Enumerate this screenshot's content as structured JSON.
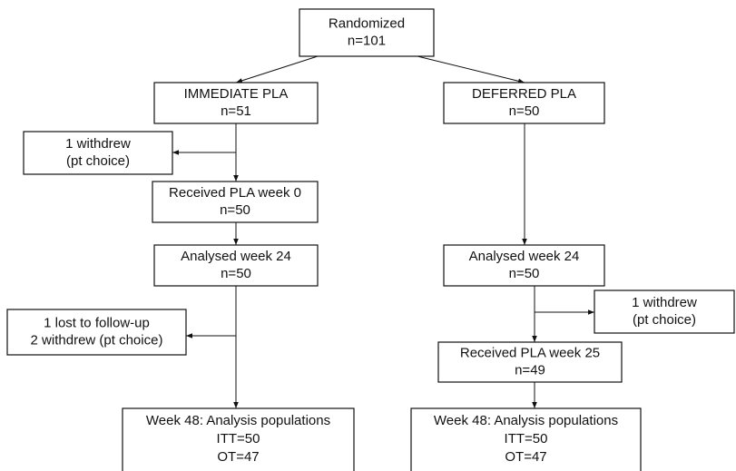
{
  "nodes": [
    {
      "lines": [
        "Randomized",
        "n=101"
      ]
    },
    {
      "lines": [
        "IMMEDIATE PLA",
        "n=51"
      ]
    },
    {
      "lines": [
        "DEFERRED PLA",
        "n=50"
      ]
    },
    {
      "lines": [
        "1 withdrew",
        "(pt choice)"
      ]
    },
    {
      "lines": [
        "Received PLA week 0",
        "n=50"
      ]
    },
    {
      "lines": [
        "Analysed week 24",
        "n=50"
      ]
    },
    {
      "lines": [
        "Analysed week 24",
        "n=50"
      ]
    },
    {
      "lines": [
        "1 withdrew",
        "(pt choice)"
      ]
    },
    {
      "lines": [
        "1 lost to follow-up",
        "2 withdrew (pt choice)"
      ]
    },
    {
      "lines": [
        "Received PLA week 25",
        "n=49"
      ]
    },
    {
      "lines": [
        "Week 48: Analysis populations",
        "ITT=50",
        "OT=47"
      ]
    },
    {
      "lines": [
        "Week 48: Analysis populations",
        "ITT=50",
        "OT=47"
      ]
    }
  ]
}
